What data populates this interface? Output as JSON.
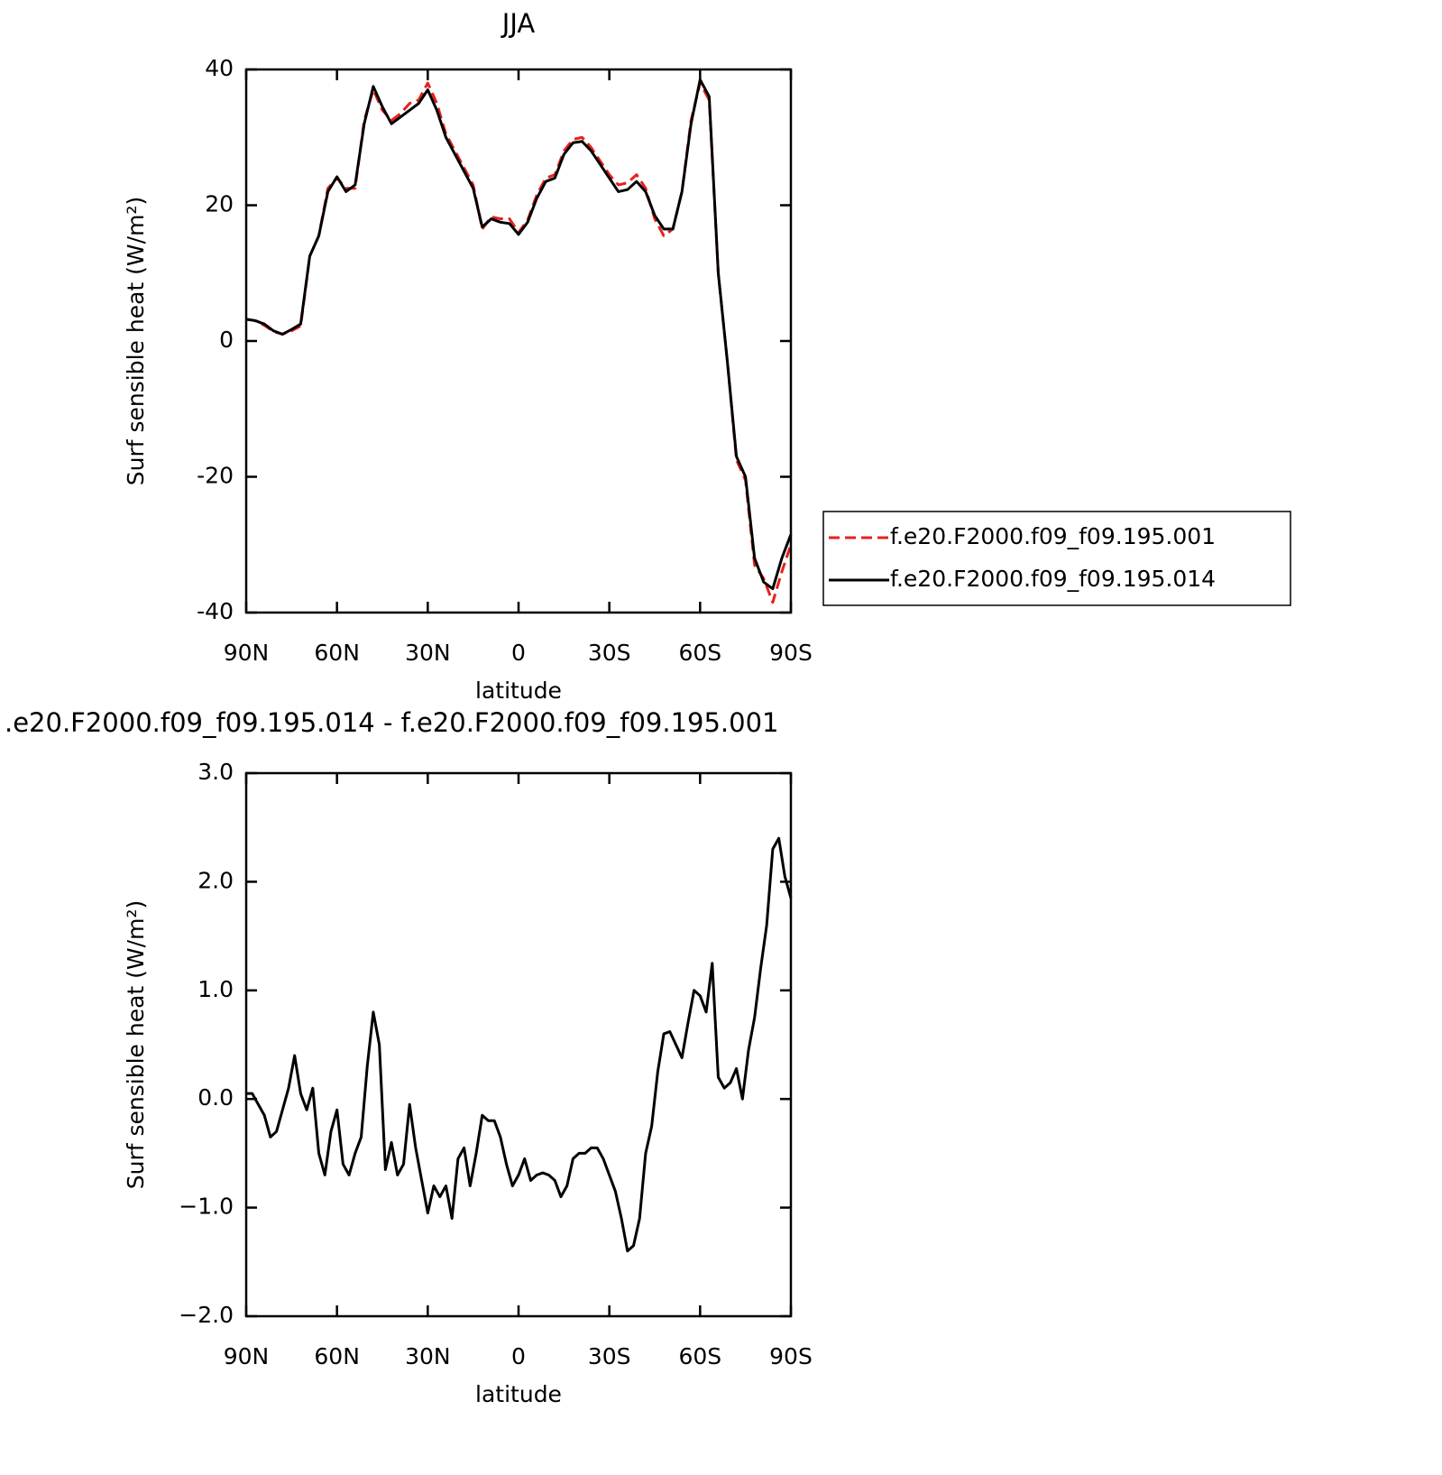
{
  "chart_data": [
    {
      "type": "line",
      "title": "JJA",
      "xlabel": "latitude",
      "ylabel": "Surf sensible heat (W/m²)",
      "x": [
        90,
        87,
        84,
        81,
        78,
        75,
        72,
        69,
        66,
        63,
        60,
        57,
        54,
        51,
        48,
        45,
        42,
        39,
        36,
        33,
        30,
        27,
        24,
        21,
        18,
        15,
        12,
        9,
        6,
        3,
        0,
        -3,
        -6,
        -9,
        -12,
        -15,
        -18,
        -21,
        -24,
        -27,
        -30,
        -33,
        -36,
        -39,
        -42,
        -45,
        -48,
        -51,
        -54,
        -57,
        -60,
        -63,
        -66,
        -69,
        -72,
        -75,
        -78,
        -81,
        -84,
        -87,
        -90
      ],
      "series": [
        {
          "name": "f.e20.F2000.f09_f09.195.001",
          "color": "#e8201c",
          "linestyle": "dashed",
          "values": [
            3.2,
            3.0,
            2.3,
            1.4,
            1.0,
            1.5,
            2.2,
            12.5,
            15.5,
            22.5,
            24,
            22.5,
            22.5,
            32.5,
            37,
            34,
            32.5,
            33.5,
            35,
            35.5,
            38,
            35,
            30.5,
            28,
            25.5,
            23,
            16.5,
            18.3,
            18,
            18,
            16,
            17.8,
            21.5,
            24,
            24.5,
            28,
            29.7,
            30,
            28.5,
            26.5,
            24.5,
            23,
            23.3,
            24.5,
            22.5,
            18,
            15.5,
            16.5,
            22,
            32.5,
            38,
            35.5,
            10,
            -3,
            -17.5,
            -20.5,
            -33,
            -35,
            -38.5,
            -34,
            -30
          ]
        },
        {
          "name": "f.e20.F2000.f09_f09.195.014",
          "color": "#000000",
          "linestyle": "solid",
          "values": [
            3.2,
            3.0,
            2.5,
            1.5,
            1.0,
            1.7,
            2.5,
            12.5,
            15.5,
            22,
            24.2,
            22,
            23,
            32,
            37.5,
            34.5,
            32,
            33,
            34,
            35,
            37,
            34,
            30,
            27.5,
            25,
            22.5,
            16.8,
            18,
            17.5,
            17.3,
            15.7,
            17.5,
            21,
            23.5,
            24,
            27.5,
            29.2,
            29.4,
            28,
            26,
            24,
            22,
            22.3,
            23.5,
            22,
            18.5,
            16.5,
            16.5,
            22,
            32,
            38.5,
            36,
            10,
            -3,
            -17,
            -20,
            -32,
            -35.5,
            -36.5,
            -32,
            -28.5
          ]
        }
      ],
      "xlim": [
        90,
        -90
      ],
      "xticks": [
        {
          "value": 90,
          "label": "90N"
        },
        {
          "value": 60,
          "label": "60N"
        },
        {
          "value": 30,
          "label": "30N"
        },
        0,
        {
          "value": -30,
          "label": "30S"
        },
        {
          "value": -60,
          "label": "60S"
        },
        {
          "value": -90,
          "label": "90S"
        }
      ],
      "ylim": [
        -40,
        40
      ],
      "yticks": [
        -40,
        -20,
        0,
        20,
        40
      ],
      "legend": "right"
    },
    {
      "type": "line",
      "title": ".e20.F2000.f09_f09.195.014 - f.e20.F2000.f09_f09.195.001",
      "xlabel": "latitude",
      "ylabel": "Surf sensible heat (W/m²)",
      "x": [
        90,
        88,
        86,
        84,
        82,
        80,
        78,
        76,
        74,
        72,
        70,
        68,
        66,
        64,
        62,
        60,
        58,
        56,
        54,
        52,
        50,
        48,
        46,
        44,
        42,
        40,
        38,
        36,
        34,
        32,
        30,
        28,
        26,
        24,
        22,
        20,
        18,
        16,
        14,
        12,
        10,
        8,
        6,
        4,
        2,
        0,
        -2,
        -4,
        -6,
        -8,
        -10,
        -12,
        -14,
        -16,
        -18,
        -20,
        -22,
        -24,
        -26,
        -28,
        -30,
        -32,
        -34,
        -36,
        -38,
        -40,
        -42,
        -44,
        -46,
        -48,
        -50,
        -52,
        -54,
        -56,
        -58,
        -60,
        -62,
        -64,
        -66,
        -68,
        -70,
        -72,
        -74,
        -76,
        -78,
        -80,
        -82,
        -84,
        -86,
        -88,
        -90
      ],
      "color": "#000000",
      "values": [
        0.05,
        0.05,
        -0.05,
        -0.15,
        -0.35,
        -0.3,
        -0.1,
        0.1,
        0.4,
        0.05,
        -0.1,
        0.1,
        -0.5,
        -0.7,
        -0.3,
        -0.1,
        -0.6,
        -0.7,
        -0.5,
        -0.35,
        0.3,
        0.8,
        0.5,
        -0.65,
        -0.4,
        -0.7,
        -0.6,
        -0.05,
        -0.45,
        -0.75,
        -1.05,
        -0.8,
        -0.9,
        -0.8,
        -1.1,
        -0.55,
        -0.45,
        -0.8,
        -0.5,
        -0.15,
        -0.2,
        -0.2,
        -0.35,
        -0.6,
        -0.8,
        -0.7,
        -0.55,
        -0.75,
        -0.7,
        -0.68,
        -0.7,
        -0.75,
        -0.9,
        -0.8,
        -0.55,
        -0.5,
        -0.5,
        -0.45,
        -0.45,
        -0.55,
        -0.7,
        -0.85,
        -1.1,
        -1.4,
        -1.35,
        -1.1,
        -0.5,
        -0.25,
        0.25,
        0.6,
        0.62,
        0.5,
        0.38,
        0.7,
        1.0,
        0.95,
        0.8,
        1.25,
        0.2,
        0.1,
        0.15,
        0.28,
        0,
        0.45,
        0.75,
        1.2,
        1.6,
        2.3,
        2.4,
        2.05,
        1.85
      ],
      "xlim": [
        90,
        -90
      ],
      "xticks": [
        {
          "value": 90,
          "label": "90N"
        },
        {
          "value": 60,
          "label": "60N"
        },
        {
          "value": 30,
          "label": "30N"
        },
        0,
        {
          "value": -30,
          "label": "30S"
        },
        {
          "value": -60,
          "label": "60S"
        },
        {
          "value": -90,
          "label": "90S"
        }
      ],
      "ylim": [
        -2,
        3
      ],
      "yticks": [
        {
          "value": -2,
          "label": "−2.0"
        },
        {
          "value": -1,
          "label": "−1.0"
        },
        {
          "value": 0,
          "label": "0.0"
        },
        {
          "value": 1,
          "label": "1.0"
        },
        {
          "value": 2,
          "label": "2.0"
        },
        {
          "value": 3,
          "label": "3.0"
        }
      ]
    }
  ]
}
